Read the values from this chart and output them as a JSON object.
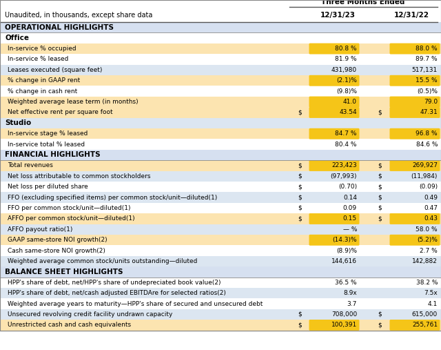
{
  "title_header": "Three Months Ended",
  "col1_header": "12/31/23",
  "col2_header": "12/31/22",
  "subheader": "Unaudited, in thousands, except share data",
  "sections": [
    {
      "name": "OPERATIONAL HIGHLIGHTS",
      "is_section_header": true,
      "bg": "#d6e0f0"
    },
    {
      "name": "Office",
      "is_subsection": true,
      "bg": "#ffffff"
    },
    {
      "name": "In-service % occupied",
      "val1": "80.8 %",
      "val2": "88.0 %",
      "dollar1": false,
      "dollar2": false,
      "highlight": true,
      "bg": "#fce4b0"
    },
    {
      "name": "In-service % leased",
      "val1": "81.9 %",
      "val2": "89.7 %",
      "dollar1": false,
      "dollar2": false,
      "highlight": false,
      "bg": "#ffffff"
    },
    {
      "name": "Leases executed (square feet)",
      "val1": "431,980",
      "val2": "517,131",
      "dollar1": false,
      "dollar2": false,
      "highlight": false,
      "bg": "#dce6f1"
    },
    {
      "name": "% change in GAAP rent",
      "val1": "(2.1)%",
      "val2": "15.5 %",
      "dollar1": false,
      "dollar2": false,
      "highlight": true,
      "bg": "#fce4b0"
    },
    {
      "name": "% change in cash rent",
      "val1": "(9.8)%",
      "val2": "(0.5)%",
      "dollar1": false,
      "dollar2": false,
      "highlight": false,
      "bg": "#ffffff"
    },
    {
      "name": "Weighted average lease term (in months)",
      "val1": "41.0",
      "val2": "79.0",
      "dollar1": false,
      "dollar2": false,
      "highlight": true,
      "bg": "#fce4b0"
    },
    {
      "name": "Net effective rent per square foot",
      "val1": "43.54",
      "val2": "47.31",
      "dollar1": true,
      "dollar2": true,
      "highlight": true,
      "bg": "#fce4b0"
    },
    {
      "name": "Studio",
      "is_subsection": true,
      "bg": "#dce6f1"
    },
    {
      "name": "In-service stage % leased",
      "val1": "84.7 %",
      "val2": "96.8 %",
      "dollar1": false,
      "dollar2": false,
      "highlight": true,
      "bg": "#fce4b0"
    },
    {
      "name": "In-service total % leased",
      "val1": "80.4 %",
      "val2": "84.6 %",
      "dollar1": false,
      "dollar2": false,
      "highlight": false,
      "bg": "#ffffff"
    },
    {
      "name": "FINANCIAL HIGHLIGHTS",
      "is_section_header": true,
      "bg": "#d6e0f0"
    },
    {
      "name": "Total revenues",
      "val1": "223,423",
      "val2": "269,927",
      "dollar1": true,
      "dollar2": true,
      "highlight": true,
      "bg": "#fce4b0"
    },
    {
      "name": "Net loss attributable to common stockholders",
      "val1": "(97,993)",
      "val2": "(11,984)",
      "dollar1": true,
      "dollar2": true,
      "highlight": false,
      "bg": "#dce6f1"
    },
    {
      "name": "Net loss per diluted share",
      "val1": "(0.70)",
      "val2": "(0.09)",
      "dollar1": true,
      "dollar2": true,
      "highlight": false,
      "bg": "#ffffff"
    },
    {
      "name": "FFO (excluding specified items) per common stock/unit—diluted(1)",
      "val1": "0.14",
      "val2": "0.49",
      "dollar1": true,
      "dollar2": true,
      "highlight": false,
      "bg": "#dce6f1"
    },
    {
      "name": "FFO per common stock/unit—diluted(1)",
      "val1": "0.09",
      "val2": "0.47",
      "dollar1": true,
      "dollar2": true,
      "highlight": false,
      "bg": "#ffffff"
    },
    {
      "name": "AFFO per common stock/unit—diluted(1)",
      "val1": "0.15",
      "val2": "0.43",
      "dollar1": true,
      "dollar2": true,
      "highlight": true,
      "bg": "#fce4b0"
    },
    {
      "name": "AFFO payout ratio(1)",
      "val1": "— %",
      "val2": "58.0 %",
      "dollar1": false,
      "dollar2": false,
      "highlight": false,
      "bg": "#dce6f1"
    },
    {
      "name": "GAAP same-store NOI growth(2)",
      "val1": "(14.3)%",
      "val2": "(5.2)%",
      "dollar1": false,
      "dollar2": false,
      "highlight": true,
      "bg": "#fce4b0"
    },
    {
      "name": "Cash same-store NOI growth(2)",
      "val1": "(8.9)%",
      "val2": "2.7 %",
      "dollar1": false,
      "dollar2": false,
      "highlight": false,
      "bg": "#ffffff"
    },
    {
      "name": "Weighted average common stock/units outstanding—diluted",
      "val1": "144,616",
      "val2": "142,882",
      "dollar1": false,
      "dollar2": false,
      "highlight": false,
      "bg": "#dce6f1"
    },
    {
      "name": "BALANCE SHEET HIGHLIGHTS",
      "is_section_header": true,
      "bg": "#d6e0f0"
    },
    {
      "name": "HPP's share of debt, net/HPP's share of undepreciated book value(2)",
      "val1": "36.5 %",
      "val2": "38.2 %",
      "dollar1": false,
      "dollar2": false,
      "highlight": false,
      "bg": "#ffffff"
    },
    {
      "name": "HPP's share of debt, net/cash adjusted EBITDAre for selected ratios(2)",
      "val1": "8.9x",
      "val2": "7.5x",
      "dollar1": false,
      "dollar2": false,
      "highlight": false,
      "bg": "#dce6f1"
    },
    {
      "name": "Weighted average years to maturity—HPP's share of secured and unsecured debt",
      "val1": "3.7",
      "val2": "4.1",
      "dollar1": false,
      "dollar2": false,
      "highlight": false,
      "bg": "#ffffff"
    },
    {
      "name": "Unsecured revolving credit facility undrawn capacity",
      "val1": "708,000",
      "val2": "615,000",
      "dollar1": true,
      "dollar2": true,
      "highlight": false,
      "bg": "#dce6f1"
    },
    {
      "name": "Unrestricted cash and cash equivalents",
      "val1": "100,391",
      "val2": "255,761",
      "dollar1": true,
      "dollar2": true,
      "highlight": true,
      "bg": "#fce4b0"
    }
  ],
  "highlight_color": "#f5c518",
  "section_bg": "#d6e0f0",
  "alt_row_bg": "#dce6f1",
  "white_bg": "#ffffff",
  "border_color": "#888888"
}
